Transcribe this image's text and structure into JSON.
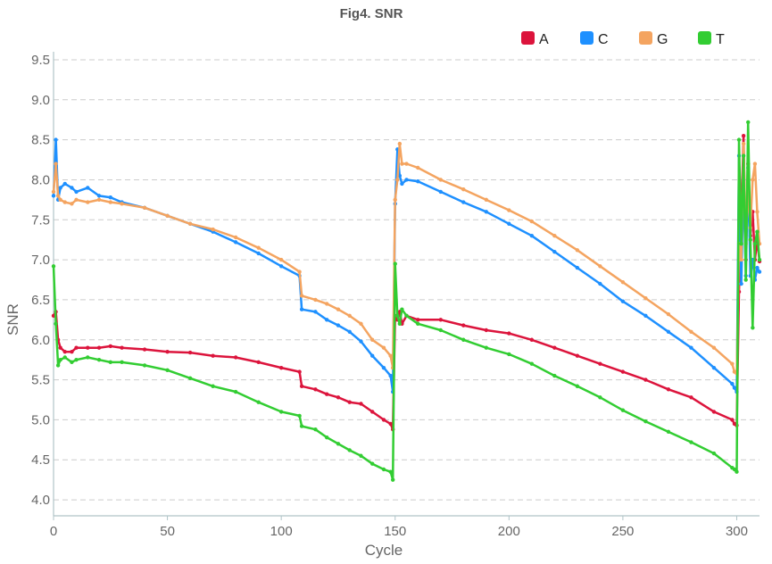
{
  "chart_data": {
    "type": "line",
    "title": "Fig4. SNR",
    "xlabel": "Cycle",
    "ylabel": "SNR",
    "xlim": [
      0,
      310
    ],
    "ylim": [
      3.8,
      9.6
    ],
    "xticks": [
      0,
      50,
      100,
      150,
      200,
      250,
      300
    ],
    "yticks": [
      4.0,
      4.5,
      5.0,
      5.5,
      6.0,
      6.5,
      7.0,
      7.5,
      8.0,
      8.5,
      9.0,
      9.5
    ],
    "grid": "horizontal-dashed",
    "legend_position": "top-right",
    "series": [
      {
        "name": "A",
        "color": "#dc143c",
        "x": [
          0,
          1,
          2,
          3,
          5,
          8,
          10,
          15,
          20,
          25,
          30,
          40,
          50,
          60,
          70,
          80,
          90,
          100,
          108,
          109,
          115,
          120,
          125,
          130,
          135,
          140,
          145,
          148,
          149,
          150,
          151,
          152,
          153,
          155,
          160,
          170,
          180,
          190,
          200,
          210,
          220,
          230,
          240,
          250,
          260,
          270,
          280,
          290,
          298,
          299,
          300,
          301,
          302,
          303,
          304,
          305,
          306,
          307,
          308,
          309,
          310
        ],
        "y": [
          6.3,
          6.35,
          6.0,
          5.9,
          5.85,
          5.85,
          5.9,
          5.9,
          5.9,
          5.92,
          5.9,
          5.88,
          5.85,
          5.84,
          5.8,
          5.78,
          5.72,
          5.65,
          5.6,
          5.42,
          5.38,
          5.32,
          5.28,
          5.22,
          5.2,
          5.1,
          5.0,
          4.95,
          4.88,
          6.3,
          6.25,
          6.35,
          6.2,
          6.3,
          6.25,
          6.25,
          6.18,
          6.12,
          6.08,
          6.0,
          5.9,
          5.8,
          5.7,
          5.6,
          5.5,
          5.38,
          5.28,
          5.1,
          5.0,
          4.95,
          4.93,
          6.6,
          7.5,
          8.55,
          7.0,
          8.2,
          7.3,
          7.6,
          7.0,
          7.25,
          6.98
        ]
      },
      {
        "name": "C",
        "color": "#1e90ff",
        "x": [
          0,
          1,
          2,
          3,
          5,
          8,
          10,
          15,
          20,
          25,
          30,
          40,
          50,
          60,
          70,
          80,
          90,
          100,
          108,
          109,
          115,
          120,
          125,
          130,
          135,
          140,
          145,
          148,
          149,
          150,
          151,
          152,
          153,
          155,
          160,
          170,
          180,
          190,
          200,
          210,
          220,
          230,
          240,
          250,
          260,
          270,
          280,
          290,
          298,
          299,
          300,
          301,
          302,
          303,
          304,
          305,
          306,
          307,
          308,
          309,
          310
        ],
        "y": [
          7.8,
          8.5,
          7.75,
          7.9,
          7.95,
          7.9,
          7.85,
          7.9,
          7.8,
          7.78,
          7.72,
          7.65,
          7.55,
          7.45,
          7.35,
          7.22,
          7.08,
          6.92,
          6.8,
          6.38,
          6.35,
          6.25,
          6.18,
          6.1,
          5.98,
          5.8,
          5.65,
          5.55,
          5.35,
          7.7,
          8.38,
          8.05,
          7.95,
          8.0,
          7.98,
          7.85,
          7.72,
          7.6,
          7.45,
          7.3,
          7.1,
          6.9,
          6.7,
          6.48,
          6.3,
          6.1,
          5.9,
          5.65,
          5.45,
          5.4,
          5.35,
          8.3,
          6.7,
          8.0,
          6.8,
          8.15,
          6.8,
          7.0,
          6.75,
          6.9,
          6.85
        ]
      },
      {
        "name": "G",
        "color": "#f4a460",
        "x": [
          0,
          1,
          2,
          3,
          5,
          8,
          10,
          15,
          20,
          25,
          30,
          40,
          50,
          60,
          70,
          80,
          90,
          100,
          108,
          109,
          115,
          120,
          125,
          130,
          135,
          140,
          145,
          148,
          149,
          150,
          151,
          152,
          153,
          155,
          160,
          170,
          180,
          190,
          200,
          210,
          220,
          230,
          240,
          250,
          260,
          270,
          280,
          290,
          298,
          299,
          300,
          301,
          302,
          303,
          304,
          305,
          306,
          307,
          308,
          309,
          310
        ],
        "y": [
          7.85,
          8.2,
          7.8,
          7.75,
          7.72,
          7.7,
          7.75,
          7.72,
          7.75,
          7.72,
          7.7,
          7.65,
          7.55,
          7.45,
          7.38,
          7.28,
          7.15,
          7.0,
          6.85,
          6.55,
          6.5,
          6.45,
          6.38,
          6.3,
          6.2,
          6.0,
          5.9,
          5.8,
          5.65,
          7.75,
          8.0,
          8.45,
          8.2,
          8.2,
          8.15,
          8.0,
          7.88,
          7.75,
          7.62,
          7.48,
          7.3,
          7.12,
          6.92,
          6.72,
          6.52,
          6.32,
          6.1,
          5.9,
          5.7,
          5.6,
          5.58,
          7.2,
          7.0,
          8.45,
          7.2,
          7.9,
          7.4,
          8.0,
          8.2,
          7.6,
          7.2
        ]
      },
      {
        "name": "T",
        "color": "#32cd32",
        "x": [
          0,
          1,
          2,
          3,
          5,
          8,
          10,
          15,
          20,
          25,
          30,
          40,
          50,
          60,
          70,
          80,
          90,
          100,
          108,
          109,
          115,
          120,
          125,
          130,
          135,
          140,
          145,
          148,
          149,
          150,
          151,
          152,
          153,
          155,
          160,
          170,
          180,
          190,
          200,
          210,
          220,
          230,
          240,
          250,
          260,
          270,
          280,
          290,
          298,
          299,
          300,
          301,
          302,
          303,
          304,
          305,
          306,
          307,
          308,
          309,
          310
        ],
        "y": [
          6.92,
          6.2,
          5.68,
          5.75,
          5.78,
          5.72,
          5.75,
          5.78,
          5.75,
          5.72,
          5.72,
          5.68,
          5.62,
          5.52,
          5.42,
          5.35,
          5.22,
          5.1,
          5.05,
          4.92,
          4.88,
          4.78,
          4.7,
          4.62,
          4.55,
          4.45,
          4.38,
          4.35,
          4.25,
          6.95,
          6.3,
          6.2,
          6.38,
          6.3,
          6.2,
          6.12,
          6.0,
          5.9,
          5.82,
          5.7,
          5.55,
          5.42,
          5.28,
          5.12,
          4.98,
          4.85,
          4.72,
          4.58,
          4.4,
          4.38,
          4.35,
          8.5,
          7.2,
          8.3,
          6.75,
          8.72,
          7.25,
          6.15,
          7.2,
          7.35,
          7.0
        ]
      }
    ]
  }
}
